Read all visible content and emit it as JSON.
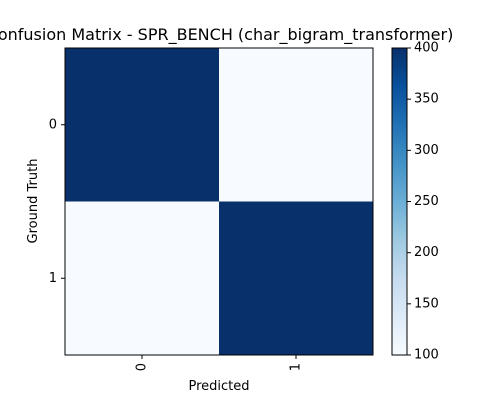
{
  "chart_data": {
    "type": "heatmap",
    "title": "Confusion Matrix - SPR_BENCH (char_bigram_transformer)",
    "xlabel": "Predicted",
    "ylabel": "Ground Truth",
    "x_categories": [
      "0",
      "1"
    ],
    "y_categories": [
      "0",
      "1"
    ],
    "values": [
      [
        400,
        100
      ],
      [
        100,
        400
      ]
    ],
    "colormap": "Blues",
    "color_low": "#f7fbff",
    "color_high": "#08306b",
    "colorbar": {
      "range": [
        100,
        400
      ],
      "ticks": [
        "100",
        "150",
        "200",
        "250",
        "300",
        "350",
        "400"
      ]
    }
  }
}
